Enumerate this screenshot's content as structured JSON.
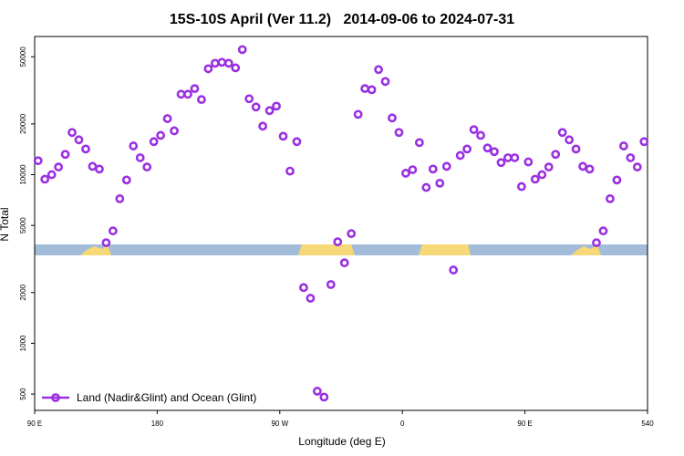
{
  "chart_data": {
    "type": "scatter",
    "title": "15S-10S April (Ver 11.2)   2014-09-06 to 2024-07-31",
    "x_label": "Longitude (deg E)",
    "y_label": "N Total",
    "xlim": [
      90,
      540
    ],
    "xticks": [
      {
        "value": 90,
        "label": "90 E"
      },
      180,
      {
        "value": 270,
        "label": "90 W"
      },
      {
        "value": 360,
        "label": "0"
      },
      {
        "value": 450,
        "label": "90 E"
      },
      540
    ],
    "ylim": [
      400,
      66000
    ],
    "ylog": true,
    "yticks": [
      500,
      1000,
      2000,
      5000,
      10000,
      20000,
      50000
    ],
    "legend": "bottom-left",
    "x": [
      92.5,
      97.5,
      102.5,
      107.5,
      112.5,
      117.5,
      122.5,
      127.5,
      132.5,
      137.5,
      142.5,
      147.5,
      152.5,
      157.5,
      162.5,
      167.5,
      172.5,
      177.5,
      182.5,
      187.5,
      192.5,
      197.5,
      202.5,
      207.5,
      212.5,
      217.5,
      222.5,
      227.5,
      232.5,
      237.5,
      242.5,
      247.5,
      252.5,
      257.5,
      262.5,
      267.5,
      272.5,
      277.5,
      282.5,
      287.5,
      292.5,
      297.5,
      302.5,
      307.5,
      312.5,
      317.5,
      322.5,
      327.5,
      332.5,
      337.5,
      342.5,
      347.5,
      352.5,
      357.5,
      362.5,
      367.5,
      372.5,
      377.5,
      382.5,
      387.5,
      392.5,
      397.5,
      402.5,
      407.5,
      412.5,
      417.5,
      422.5,
      427.5,
      432.5,
      437.5,
      442.5,
      447.5,
      452.5,
      457.5,
      462.5,
      467.5,
      472.5,
      477.5,
      482.5,
      487.5,
      492.5,
      497.5,
      502.5,
      507.5,
      512.5,
      517.5,
      522.5,
      527.5,
      532.5,
      537.5
    ],
    "series": [
      {
        "name": "Land (Nadir&Glint) and Ocean (Glint)",
        "color": "#9b30e0",
        "values": [
          12100,
          9400,
          10000,
          11100,
          13200,
          17800,
          16100,
          14200,
          11200,
          10800,
          3950,
          4640,
          7200,
          9300,
          14800,
          12600,
          11100,
          15700,
          17100,
          21500,
          18200,
          30000,
          30000,
          32400,
          27900,
          42500,
          45800,
          46400,
          45800,
          43000,
          55200,
          28200,
          25200,
          19400,
          24000,
          25500,
          16900,
          10500,
          15700,
          2140,
          1850,
          520,
          480,
          2230,
          4000,
          3000,
          4470,
          22800,
          32400,
          31900,
          42000,
          35700,
          21700,
          17800,
          10200,
          10700,
          15500,
          8400,
          10800,
          8900,
          11200,
          2720,
          13000,
          14200,
          18500,
          17100,
          14400,
          13700,
          11800,
          12600,
          12600,
          8500,
          11900,
          9400,
          10000,
          11100,
          13200,
          17800,
          16100,
          14200,
          11200,
          10800,
          3950,
          4640,
          7200,
          9300,
          14800,
          12600,
          11100,
          15700
        ]
      }
    ]
  }
}
